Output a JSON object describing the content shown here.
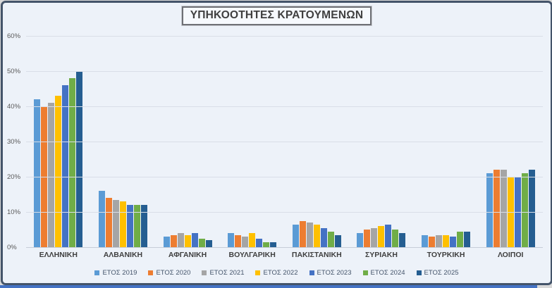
{
  "chart_data": {
    "type": "bar",
    "title": "ΥΠΗΚΟΟΤΗΤΕΣ ΚΡΑΤΟΥΜΕΝΩΝ",
    "categories": [
      "ΕΛΛΗΝΙΚΗ",
      "ΑΛΒΑΝΙΚΗ",
      "ΑΦΓΑΝΙΚΗ",
      "ΒΟΥΛΓΑΡΙΚΗ",
      "ΠΑΚΙΣΤΑΝΙΚΗ",
      "ΣΥΡΙΑΚΗ",
      "ΤΟΥΡΚΙΚΗ",
      "ΛΟΙΠΟΙ"
    ],
    "series": [
      {
        "name": "ΕΤΟΣ 2019",
        "color": "#5B9BD5",
        "values": [
          42,
          16,
          3,
          4,
          6.5,
          4,
          3.5,
          21
        ]
      },
      {
        "name": "ΕΤΟΣ 2020",
        "color": "#ED7D31",
        "values": [
          40,
          14,
          3.5,
          3.5,
          7.5,
          5,
          3,
          22
        ]
      },
      {
        "name": "ΕΤΟΣ 2021",
        "color": "#A5A5A5",
        "values": [
          41,
          13.5,
          4,
          3,
          7,
          5.5,
          3.5,
          22
        ]
      },
      {
        "name": "ΕΤΟΣ 2022",
        "color": "#FFC000",
        "values": [
          43,
          13,
          3.5,
          4,
          6.5,
          6,
          3.5,
          20
        ]
      },
      {
        "name": "ΕΤΟΣ 2023",
        "color": "#4472C4",
        "values": [
          46,
          12,
          4,
          2.5,
          5.5,
          6.5,
          3,
          20
        ]
      },
      {
        "name": "ΕΤΟΣ 2024",
        "color": "#70AD47",
        "values": [
          48,
          12,
          2.5,
          1.5,
          4.5,
          5,
          4.5,
          21
        ]
      },
      {
        "name": "ΕΤΟΣ 2025",
        "color": "#255E91",
        "values": [
          50,
          12,
          2,
          1.5,
          3.5,
          4,
          4.5,
          22
        ]
      }
    ],
    "ylim": [
      0,
      60
    ],
    "yticks": [
      0,
      10,
      20,
      30,
      40,
      50,
      60
    ],
    "ytick_labels": [
      "0%",
      "10%",
      "20%",
      "30%",
      "40%",
      "50%",
      "60%"
    ],
    "xlabel": "",
    "ylabel": "",
    "grid": true,
    "legend_position": "bottom",
    "plot_background": "#edf2f9",
    "frame_border_color": "#44546a",
    "bottom_strip_color": "#4472c4"
  }
}
